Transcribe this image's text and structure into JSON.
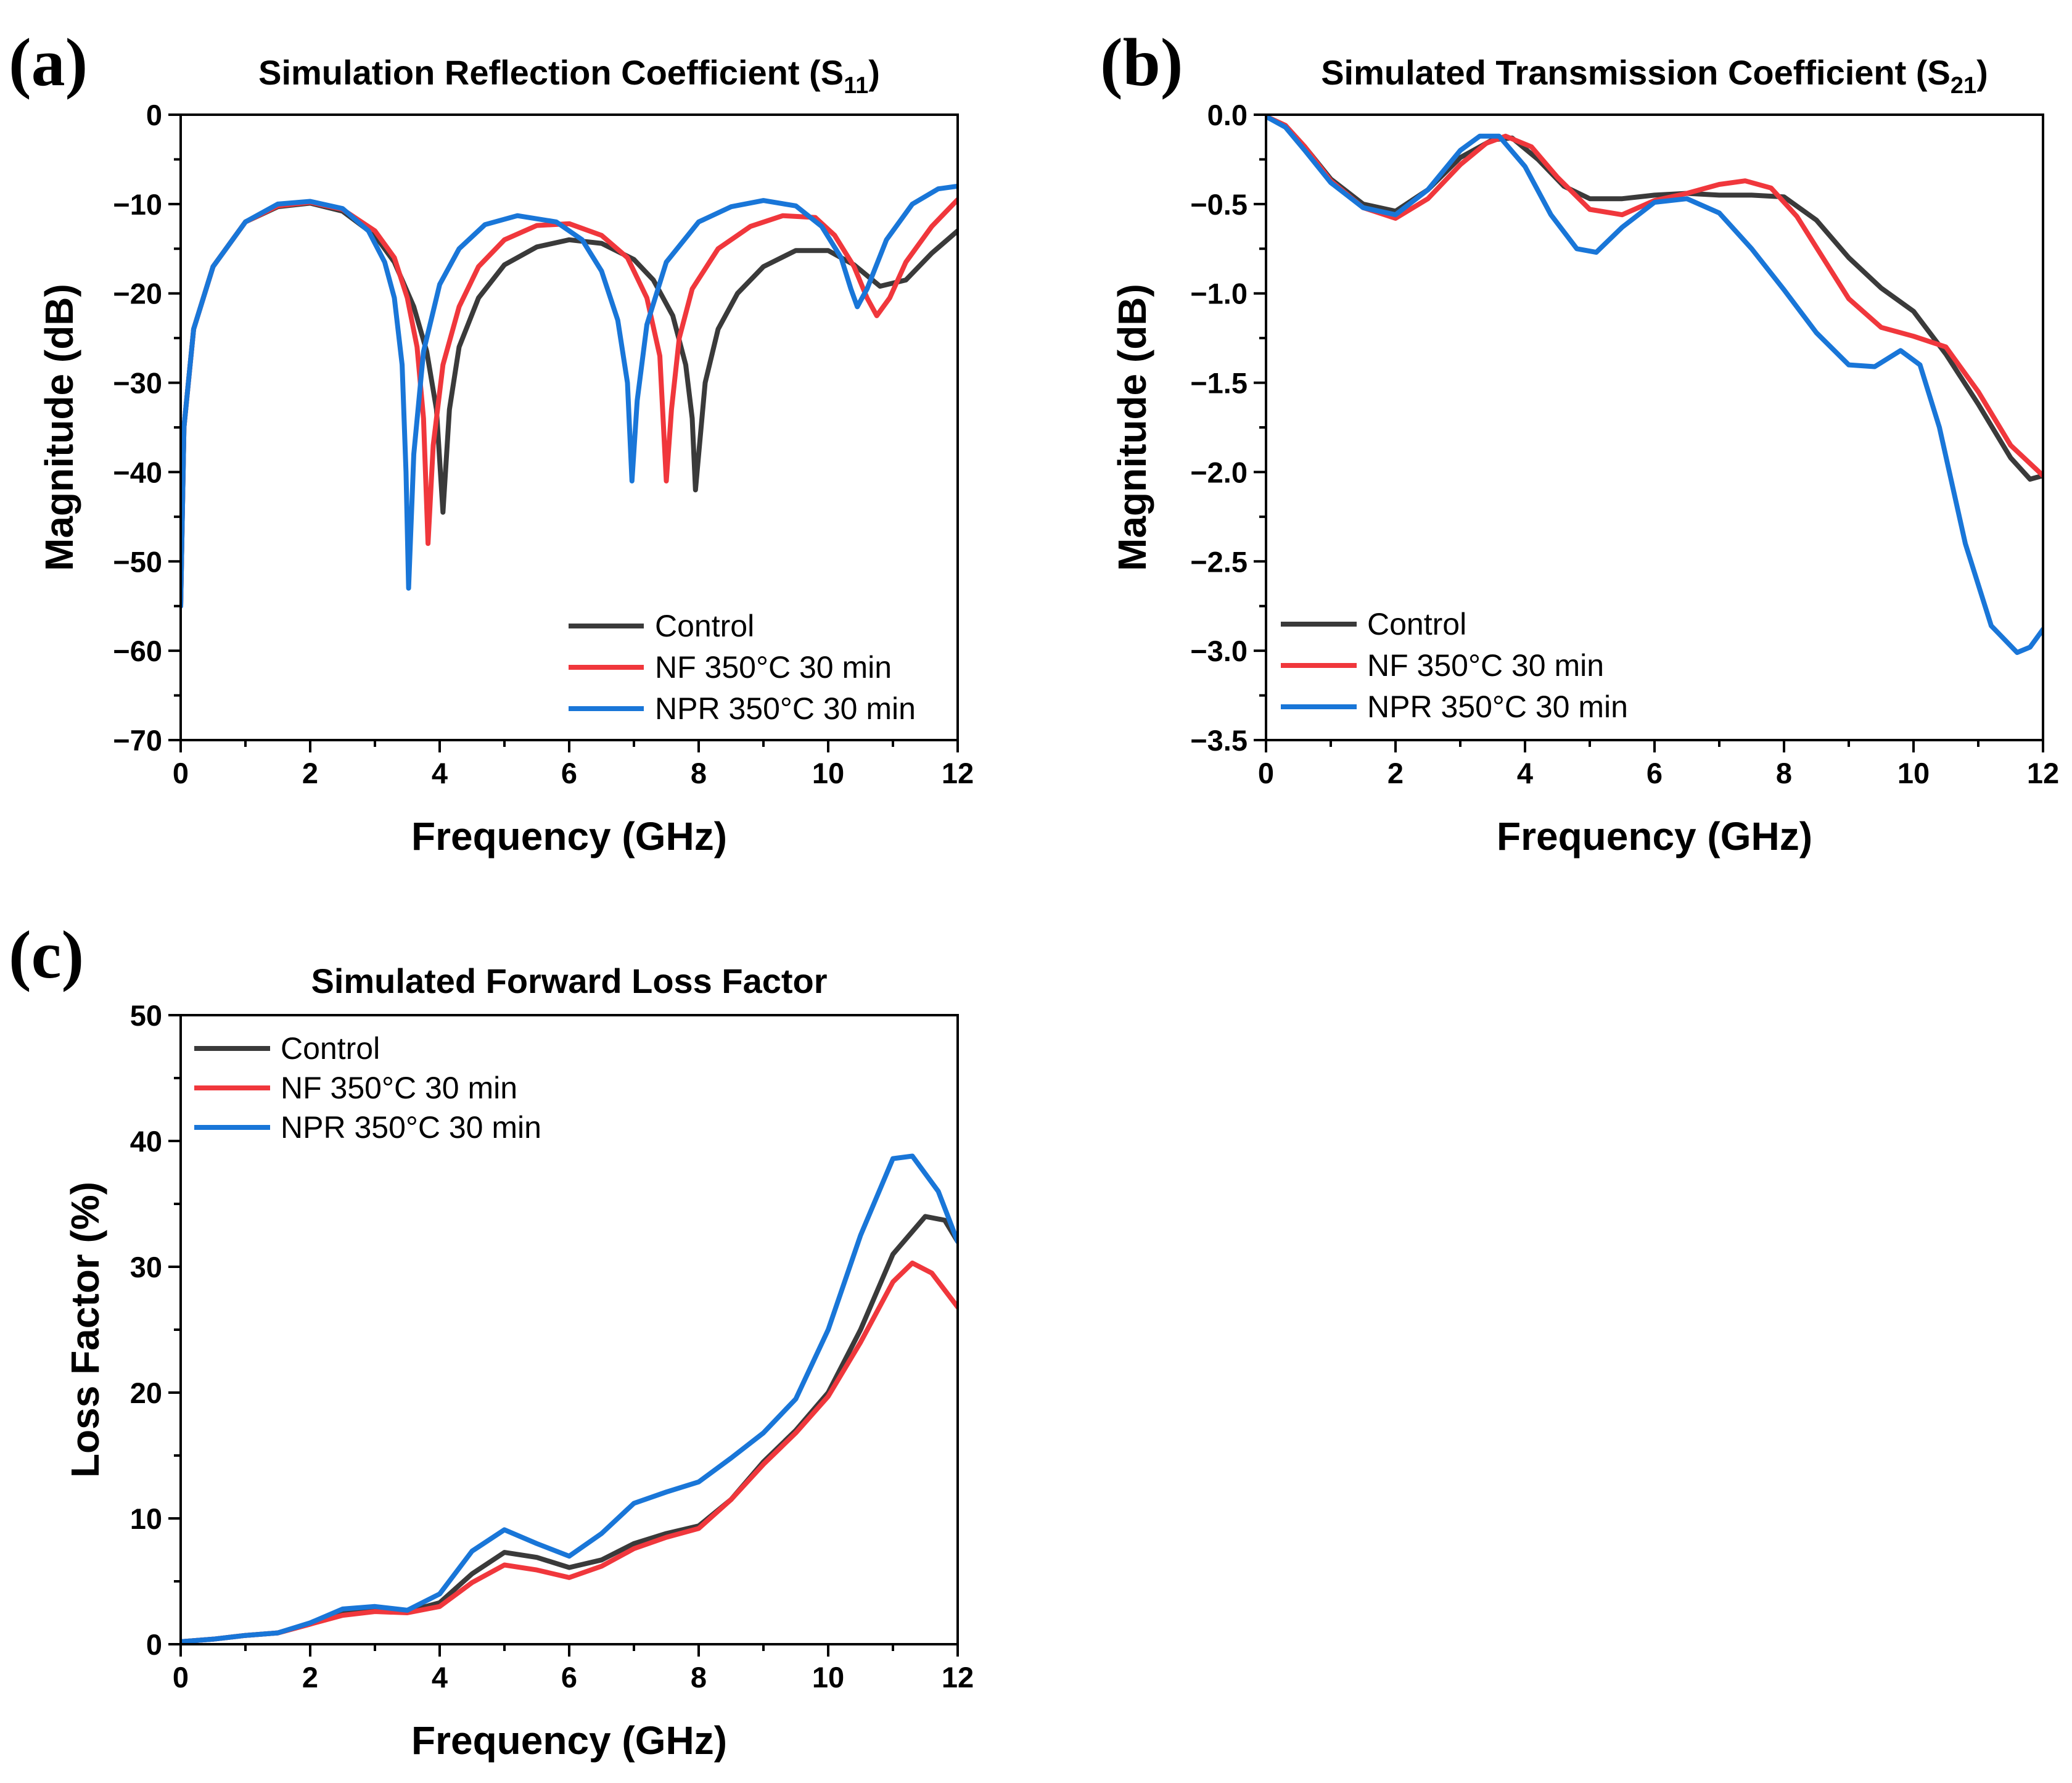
{
  "chart_data": [
    {
      "id": "a",
      "type": "line",
      "panel_label": "(a)",
      "title": "Simulation Reflection Coefficient (S",
      "title_sub": "11",
      "title_close": ")",
      "xlabel": "Frequency (GHz)",
      "ylabel": "Magnitude (dB)",
      "xlim": [
        0,
        12
      ],
      "ylim": [
        -70,
        0
      ],
      "xticks": [
        0,
        2,
        4,
        6,
        8,
        10,
        12
      ],
      "yticks": [
        0,
        -10,
        -20,
        -30,
        -40,
        -50,
        -60,
        -70
      ],
      "ytick_labels": [
        "0",
        "−10",
        "−20",
        "−30",
        "−40",
        "−50",
        "−60",
        "−70"
      ],
      "legend_position": "bottom-right",
      "series": [
        {
          "name": "Control",
          "color": "#3a3a3a",
          "x": [
            0,
            0.05,
            0.2,
            0.5,
            1,
            1.5,
            2,
            2.5,
            3,
            3.3,
            3.6,
            3.8,
            3.95,
            4.05,
            4.15,
            4.3,
            4.6,
            5,
            5.5,
            6,
            6.5,
            7,
            7.3,
            7.6,
            7.8,
            7.9,
            7.95,
            8.0,
            8.1,
            8.3,
            8.6,
            9,
            9.5,
            10,
            10.4,
            10.8,
            11.2,
            11.6,
            12
          ],
          "y": [
            -55,
            -35,
            -24,
            -17,
            -12,
            -10.3,
            -9.9,
            -10.8,
            -13.5,
            -16.5,
            -21.5,
            -26.5,
            -33,
            -44.5,
            -33,
            -26,
            -20.5,
            -16.8,
            -14.8,
            -14,
            -14.4,
            -16.2,
            -18.5,
            -22.5,
            -28,
            -34,
            -42,
            -38,
            -30,
            -24,
            -20,
            -17,
            -15.2,
            -15.2,
            -16.8,
            -19.2,
            -18.5,
            -15.5,
            -13
          ]
        },
        {
          "name": "NF 350°C 30 min",
          "color": "#f0373c",
          "x": [
            0,
            0.05,
            0.2,
            0.5,
            1,
            1.5,
            2,
            2.5,
            3,
            3.3,
            3.5,
            3.65,
            3.75,
            3.82,
            3.9,
            4.05,
            4.3,
            4.6,
            5,
            5.5,
            6,
            6.5,
            6.9,
            7.2,
            7.4,
            7.5,
            7.58,
            7.7,
            7.9,
            8.3,
            8.8,
            9.3,
            9.8,
            10.1,
            10.4,
            10.6,
            10.75,
            10.95,
            11.2,
            11.6,
            12
          ],
          "y": [
            -55,
            -35,
            -24,
            -17,
            -12,
            -10.2,
            -9.8,
            -10.6,
            -13,
            -16,
            -20.5,
            -26,
            -34,
            -48,
            -37,
            -28,
            -21.5,
            -17,
            -14,
            -12.4,
            -12.2,
            -13.5,
            -16,
            -20.5,
            -27,
            -41,
            -33,
            -25,
            -19.5,
            -15,
            -12.5,
            -11.3,
            -11.5,
            -13.5,
            -17,
            -20.5,
            -22.5,
            -20.5,
            -16.5,
            -12.5,
            -9.5
          ]
        },
        {
          "name": "NPR 350°C 30 min",
          "color": "#1976d8",
          "x": [
            0,
            0.05,
            0.2,
            0.5,
            1,
            1.5,
            2,
            2.5,
            2.9,
            3.15,
            3.3,
            3.42,
            3.48,
            3.52,
            3.6,
            3.75,
            4.0,
            4.3,
            4.7,
            5.2,
            5.8,
            6.2,
            6.5,
            6.75,
            6.9,
            6.97,
            7.05,
            7.2,
            7.5,
            8,
            8.5,
            9,
            9.5,
            9.9,
            10.2,
            10.35,
            10.45,
            10.6,
            10.9,
            11.3,
            11.7,
            12
          ],
          "y": [
            -55,
            -35,
            -24,
            -17,
            -12,
            -10,
            -9.7,
            -10.5,
            -13,
            -16.5,
            -20.5,
            -28,
            -40,
            -53,
            -38,
            -26.5,
            -19,
            -15,
            -12.3,
            -11.3,
            -12,
            -14,
            -17.5,
            -23,
            -30,
            -41,
            -32,
            -23.5,
            -16.5,
            -12,
            -10.3,
            -9.6,
            -10.2,
            -12.5,
            -16,
            -19.5,
            -21.5,
            -19.5,
            -14,
            -10,
            -8.3,
            -8
          ]
        }
      ]
    },
    {
      "id": "b",
      "type": "line",
      "panel_label": "(b)",
      "title": "Simulated Transmission Coefficient (S",
      "title_sub": "21",
      "title_close": ")",
      "xlabel": "Frequency (GHz)",
      "ylabel": "Magnitude (dB)",
      "xlim": [
        0,
        12
      ],
      "ylim": [
        -3.5,
        0
      ],
      "xticks": [
        0,
        2,
        4,
        6,
        8,
        10,
        12
      ],
      "yticks": [
        0,
        -0.5,
        -1,
        -1.5,
        -2,
        -2.5,
        -3,
        -3.5
      ],
      "ytick_labels": [
        "0.0",
        "−0.5",
        "−1.0",
        "−1.5",
        "−2.0",
        "−2.5",
        "−3.0",
        "−3.5"
      ],
      "legend_position": "bottom-left",
      "series": [
        {
          "name": "Control",
          "color": "#3a3a3a",
          "x": [
            0,
            0.3,
            0.6,
            1,
            1.5,
            2,
            2.5,
            3,
            3.5,
            3.8,
            4.2,
            4.6,
            5,
            5.5,
            6,
            6.5,
            7,
            7.5,
            8,
            8.5,
            9,
            9.5,
            10,
            10.5,
            11,
            11.5,
            11.8,
            12
          ],
          "y": [
            -0.01,
            -0.06,
            -0.18,
            -0.36,
            -0.5,
            -0.54,
            -0.42,
            -0.24,
            -0.14,
            -0.13,
            -0.25,
            -0.4,
            -0.47,
            -0.47,
            -0.45,
            -0.44,
            -0.45,
            -0.45,
            -0.46,
            -0.59,
            -0.8,
            -0.97,
            -1.1,
            -1.34,
            -1.62,
            -1.92,
            -2.04,
            -2.02
          ]
        },
        {
          "name": "NF 350°C 30 min",
          "color": "#f0373c",
          "x": [
            0,
            0.3,
            0.6,
            1,
            1.5,
            2,
            2.5,
            3,
            3.4,
            3.7,
            4.1,
            4.5,
            5,
            5.5,
            6,
            6.5,
            7,
            7.4,
            7.8,
            8.2,
            8.6,
            9,
            9.5,
            10,
            10.5,
            11,
            11.5,
            12
          ],
          "y": [
            -0.01,
            -0.06,
            -0.18,
            -0.37,
            -0.52,
            -0.58,
            -0.47,
            -0.28,
            -0.16,
            -0.12,
            -0.18,
            -0.35,
            -0.53,
            -0.56,
            -0.48,
            -0.44,
            -0.39,
            -0.37,
            -0.41,
            -0.57,
            -0.8,
            -1.03,
            -1.19,
            -1.24,
            -1.3,
            -1.55,
            -1.85,
            -2.02
          ]
        },
        {
          "name": "NPR 350°C 30 min",
          "color": "#1976d8",
          "x": [
            0,
            0.3,
            0.6,
            1,
            1.5,
            2,
            2.5,
            3,
            3.3,
            3.6,
            4,
            4.4,
            4.8,
            5.1,
            5.5,
            6,
            6.5,
            7,
            7.5,
            8,
            8.5,
            9,
            9.4,
            9.8,
            10.1,
            10.4,
            10.8,
            11.2,
            11.6,
            11.8,
            12
          ],
          "y": [
            -0.01,
            -0.07,
            -0.2,
            -0.38,
            -0.52,
            -0.56,
            -0.42,
            -0.2,
            -0.12,
            -0.12,
            -0.29,
            -0.56,
            -0.75,
            -0.77,
            -0.63,
            -0.49,
            -0.47,
            -0.55,
            -0.75,
            -0.98,
            -1.22,
            -1.4,
            -1.41,
            -1.32,
            -1.4,
            -1.75,
            -2.4,
            -2.86,
            -3.01,
            -2.98,
            -2.88
          ]
        }
      ]
    },
    {
      "id": "c",
      "type": "line",
      "panel_label": "(c)",
      "title": "Simulated Forward Loss Factor",
      "title_sub": "",
      "title_close": "",
      "xlabel": "Frequency (GHz)",
      "ylabel": "Loss Factor (%)",
      "xlim": [
        0,
        12
      ],
      "ylim": [
        0,
        50
      ],
      "xticks": [
        0,
        2,
        4,
        6,
        8,
        10,
        12
      ],
      "yticks": [
        0,
        10,
        20,
        30,
        40,
        50
      ],
      "ytick_labels": [
        "0",
        "10",
        "20",
        "30",
        "40",
        "50"
      ],
      "legend_position": "top-left",
      "series": [
        {
          "name": "Control",
          "color": "#3a3a3a",
          "x": [
            0,
            0.5,
            1,
            1.5,
            2,
            2.5,
            3,
            3.5,
            4,
            4.5,
            5,
            5.5,
            6,
            6.5,
            7,
            7.5,
            8,
            8.5,
            9,
            9.5,
            10,
            10.5,
            11,
            11.5,
            11.8,
            12
          ],
          "y": [
            0.2,
            0.4,
            0.7,
            0.9,
            1.6,
            2.5,
            2.7,
            2.6,
            3.3,
            5.6,
            7.3,
            6.9,
            6.1,
            6.7,
            8,
            8.8,
            9.4,
            11.5,
            14.5,
            17,
            20,
            25,
            31,
            34,
            33.7,
            32
          ]
        },
        {
          "name": "NF 350°C 30 min",
          "color": "#f0373c",
          "x": [
            0,
            0.5,
            1,
            1.5,
            2,
            2.5,
            3,
            3.5,
            4,
            4.5,
            5,
            5.5,
            6,
            6.5,
            7,
            7.5,
            8,
            8.5,
            9,
            9.5,
            10,
            10.5,
            11,
            11.3,
            11.6,
            12
          ],
          "y": [
            0.2,
            0.4,
            0.7,
            0.9,
            1.6,
            2.3,
            2.6,
            2.5,
            3.0,
            4.9,
            6.3,
            5.9,
            5.3,
            6.2,
            7.6,
            8.5,
            9.2,
            11.5,
            14.3,
            16.8,
            19.7,
            24,
            28.8,
            30.3,
            29.5,
            26.8
          ]
        },
        {
          "name": "NPR 350°C 30 min",
          "color": "#1976d8",
          "x": [
            0,
            0.5,
            1,
            1.5,
            2,
            2.5,
            3,
            3.5,
            4,
            4.5,
            5,
            5.5,
            6,
            6.5,
            7,
            7.5,
            8,
            8.5,
            9,
            9.5,
            10,
            10.5,
            11,
            11.3,
            11.7,
            12
          ],
          "y": [
            0.2,
            0.4,
            0.7,
            0.9,
            1.7,
            2.8,
            3.0,
            2.7,
            4.0,
            7.4,
            9.1,
            8.0,
            7.0,
            8.8,
            11.2,
            12.1,
            12.9,
            14.8,
            16.8,
            19.5,
            25,
            32.5,
            38.6,
            38.8,
            36,
            32
          ]
        }
      ]
    }
  ]
}
